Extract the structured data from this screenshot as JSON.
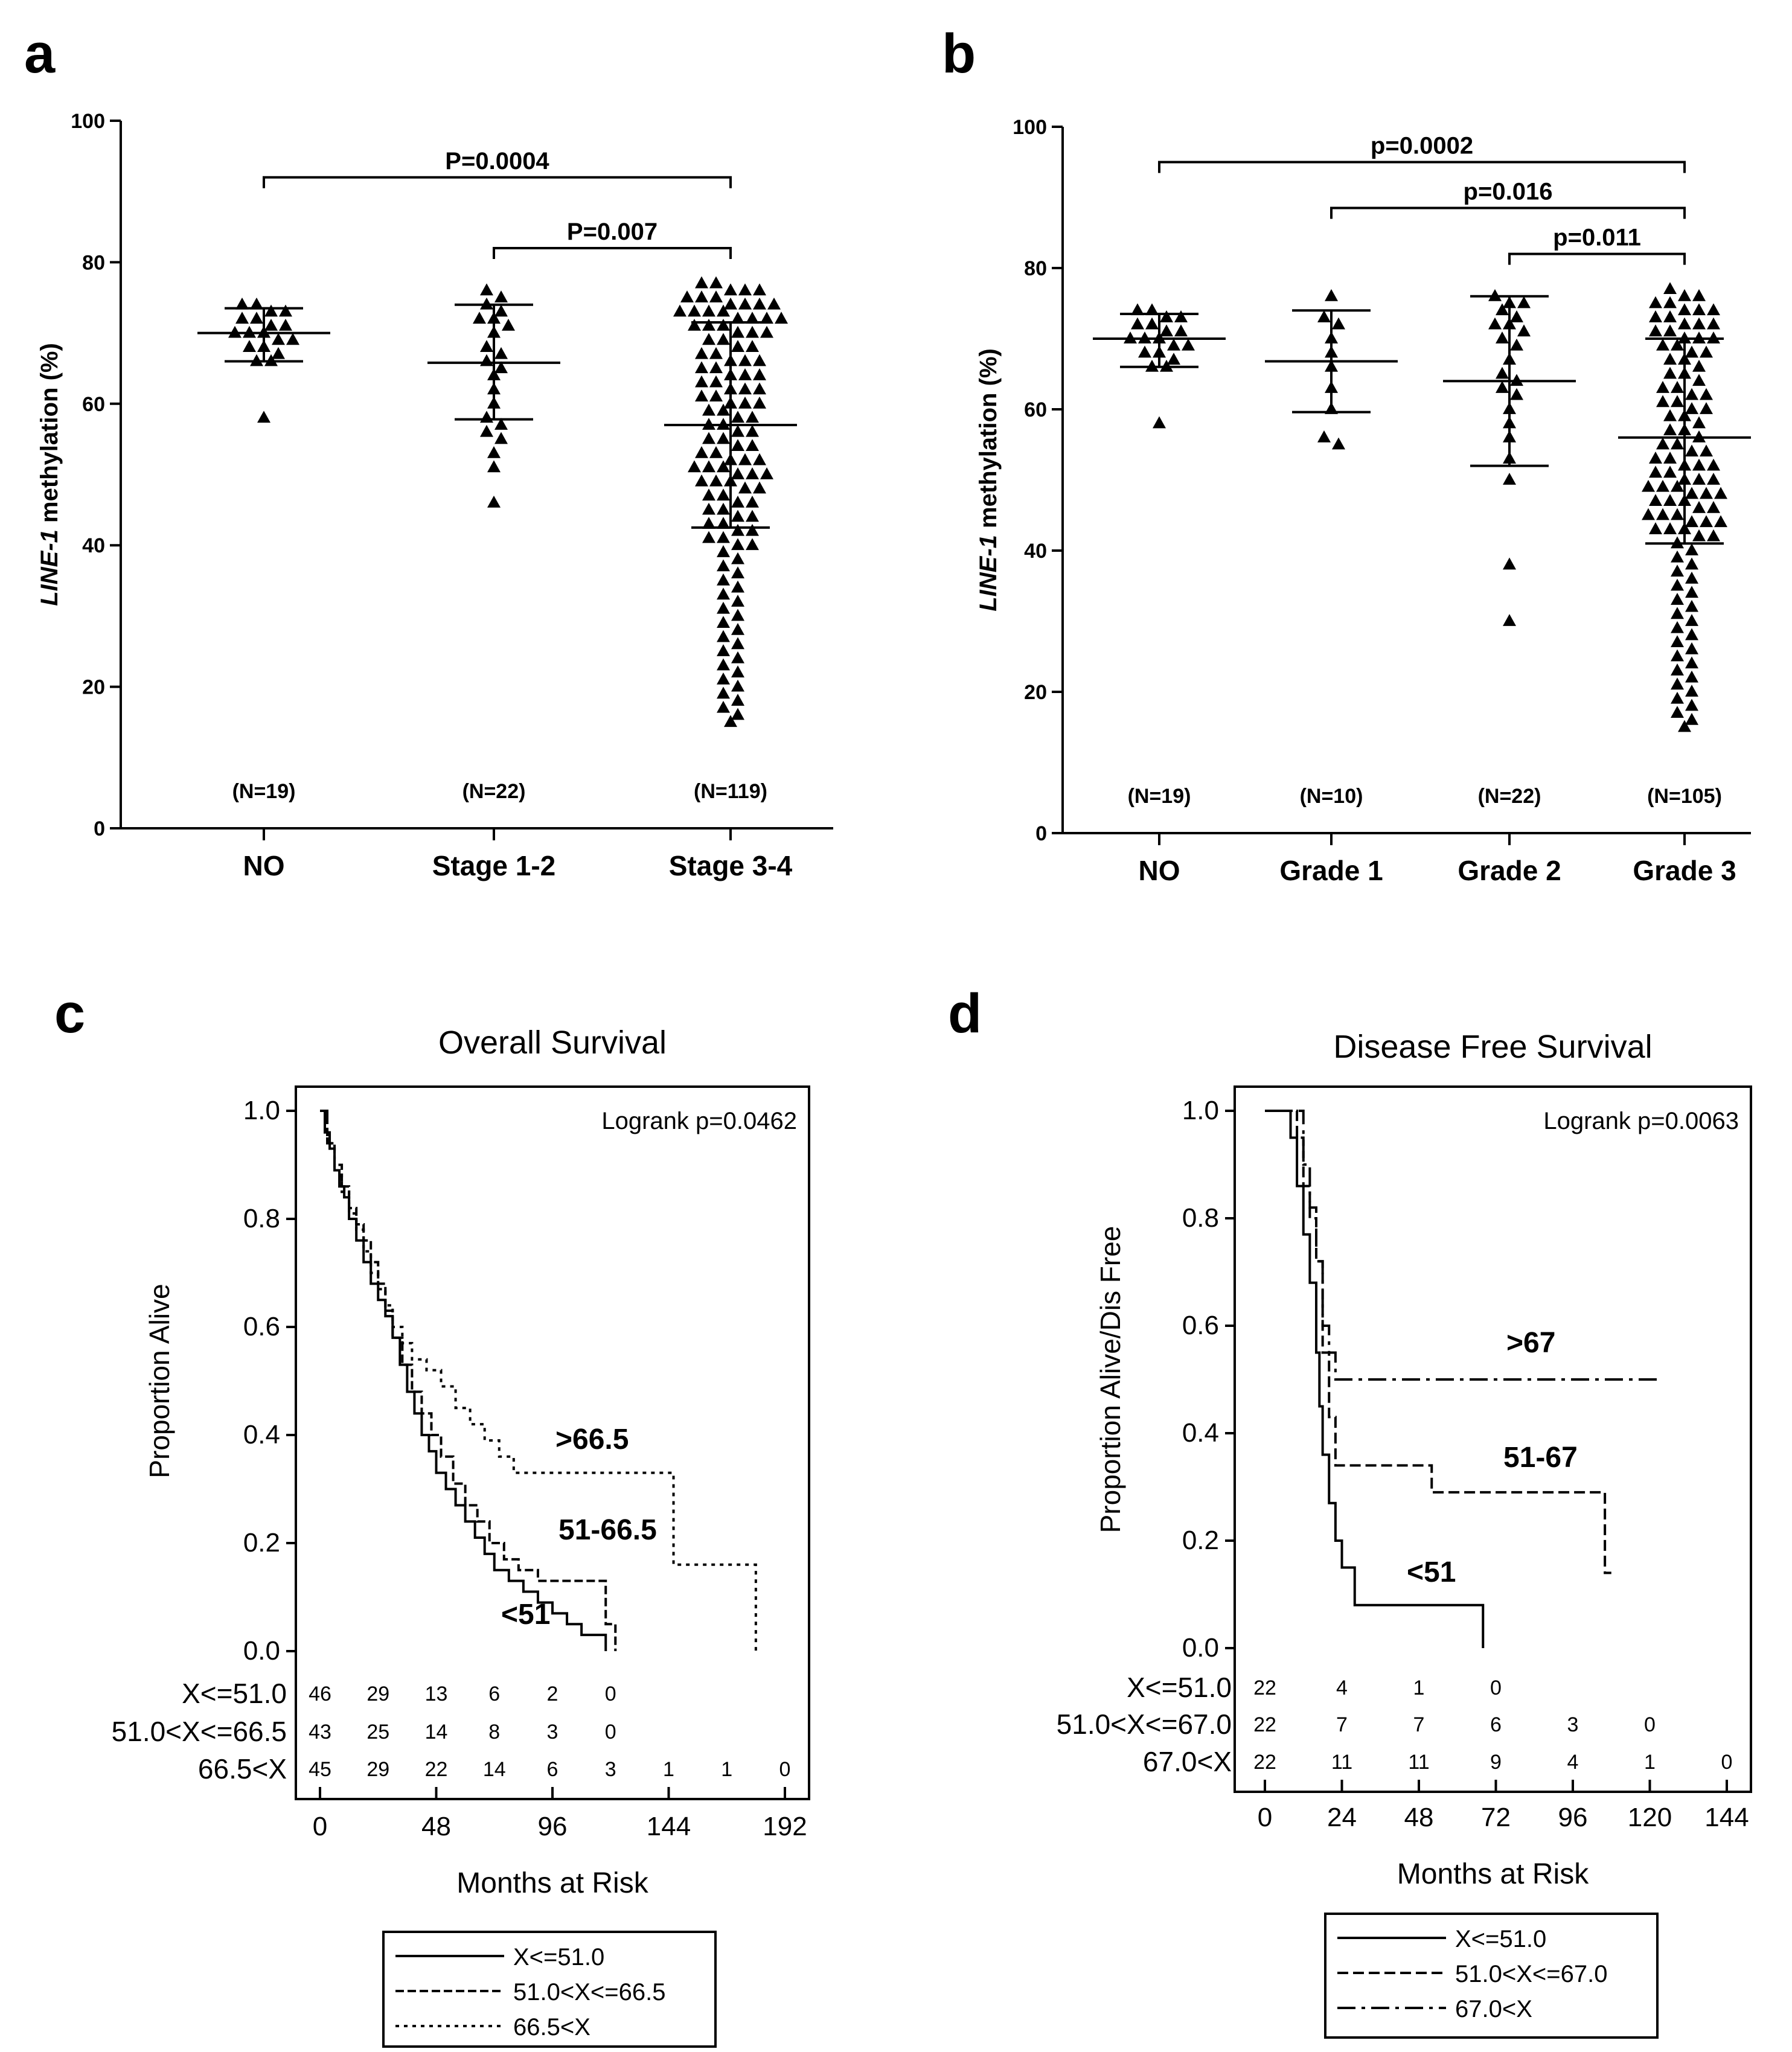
{
  "panels": {
    "a": {
      "letter": "a"
    },
    "b": {
      "letter": "b"
    },
    "c": {
      "letter": "c"
    },
    "d": {
      "letter": "d"
    }
  },
  "chart_data": [
    {
      "panel": "a",
      "type": "scatter",
      "ylabel_italic": "LINE-1",
      "ylabel_rest": " methylation (%)",
      "ylim": [
        0,
        100
      ],
      "yticks": [
        0,
        20,
        40,
        60,
        80,
        100
      ],
      "categories": [
        "NO",
        "Stage 1-2",
        "Stage 3-4"
      ],
      "n_labels": [
        "(N=19)",
        "(N=22)",
        "(N=119)"
      ],
      "summary": [
        {
          "mean": 70,
          "low": 66,
          "high": 73.5
        },
        {
          "mean": 65.8,
          "low": 57.8,
          "high": 74
        },
        {
          "mean": 57,
          "low": 42.5,
          "high": 71.5
        }
      ],
      "points": [
        [
          74,
          74,
          73,
          73,
          72,
          72,
          71,
          71,
          70,
          70,
          70,
          69,
          69,
          68,
          68,
          67,
          66,
          66,
          58
        ],
        [
          76,
          75,
          74,
          73,
          72,
          72,
          71,
          70,
          68,
          67,
          66,
          65,
          64,
          62,
          60,
          58,
          57,
          56,
          55,
          53,
          51,
          46
        ],
        [
          77,
          77,
          76,
          76,
          76,
          75,
          75,
          75,
          74,
          74,
          74,
          74,
          73,
          73,
          73,
          73,
          72,
          72,
          72,
          72,
          71,
          71,
          71,
          70,
          70,
          70,
          69,
          69,
          68,
          68,
          67,
          67,
          66,
          66,
          65,
          65,
          64,
          64,
          63,
          63,
          62,
          62,
          61,
          61,
          60,
          60,
          59,
          59,
          58,
          58,
          57,
          57,
          56,
          56,
          55,
          55,
          54,
          54,
          53,
          53,
          52,
          52,
          52,
          51,
          51,
          51,
          50,
          50,
          50,
          49,
          49,
          49,
          48,
          48,
          47,
          47,
          46,
          46,
          45,
          45,
          44,
          44,
          43,
          43,
          42,
          42,
          41,
          41,
          40,
          40,
          39,
          38,
          37,
          36,
          35,
          34,
          33,
          32,
          31,
          30,
          29,
          28,
          27,
          26,
          25,
          24,
          23,
          22,
          21,
          20,
          19,
          18,
          17,
          16,
          15,
          60,
          62,
          64,
          66
        ]
      ],
      "brackets": [
        {
          "from": 0,
          "to": 2,
          "y": 92,
          "label": "P=0.0004"
        },
        {
          "from": 1,
          "to": 2,
          "y": 82,
          "label": "P=0.007"
        }
      ]
    },
    {
      "panel": "b",
      "type": "scatter",
      "ylabel_italic": "LINE-1",
      "ylabel_rest": " methylation (%)",
      "ylim": [
        0,
        100
      ],
      "yticks": [
        0,
        20,
        40,
        60,
        80,
        100
      ],
      "categories": [
        "NO",
        "Grade 1",
        "Grade 2",
        "Grade 3"
      ],
      "n_labels": [
        "(N=19)",
        "(N=10)",
        "(N=22)",
        "(N=105)"
      ],
      "summary": [
        {
          "mean": 70,
          "low": 66,
          "high": 73.5
        },
        {
          "mean": 66.8,
          "low": 59.6,
          "high": 74
        },
        {
          "mean": 64,
          "low": 52,
          "high": 76
        },
        {
          "mean": 56,
          "low": 41,
          "high": 70
        }
      ],
      "points": [
        [
          74,
          74,
          73,
          73,
          72,
          72,
          71,
          71,
          70,
          70,
          70,
          69,
          69,
          68,
          68,
          67,
          66,
          66,
          58
        ],
        [
          76,
          73,
          72,
          70,
          68,
          66,
          63,
          60,
          56,
          55
        ],
        [
          76,
          75,
          75,
          74,
          73,
          72,
          71,
          70,
          69,
          67,
          65,
          64,
          63,
          62,
          60,
          58,
          56,
          53,
          50,
          38,
          30,
          72
        ],
        [
          77,
          76,
          76,
          75,
          75,
          74,
          74,
          73,
          73,
          72,
          72,
          71,
          71,
          70,
          70,
          69,
          69,
          68,
          67,
          66,
          65,
          64,
          63,
          62,
          61,
          60,
          59,
          58,
          57,
          56,
          55,
          54,
          53,
          52,
          52,
          51,
          51,
          50,
          50,
          49,
          49,
          48,
          48,
          47,
          47,
          46,
          46,
          45,
          45,
          44,
          44,
          43,
          43,
          42,
          42,
          41,
          40,
          39,
          38,
          37,
          36,
          35,
          34,
          33,
          32,
          31,
          30,
          29,
          28,
          27,
          26,
          25,
          24,
          23,
          22,
          21,
          20,
          19,
          18,
          17,
          16,
          15,
          55,
          57,
          59,
          61,
          63,
          65,
          67,
          68,
          70,
          72,
          74,
          52,
          53,
          54,
          50,
          49,
          48,
          47,
          45,
          44,
          43,
          60,
          62
        ]
      ],
      "brackets": [
        {
          "from": 0,
          "to": 3,
          "y": 95,
          "label": "p=0.0002"
        },
        {
          "from": 1,
          "to": 3,
          "y": 88.5,
          "label": "p=0.016"
        },
        {
          "from": 2,
          "to": 3,
          "y": 82,
          "label": "p=0.011"
        }
      ]
    },
    {
      "panel": "c",
      "type": "line",
      "title": "Overall Survival",
      "annotation": "Logrank p=0.0462",
      "xlabel": "Months at Risk",
      "ylabel": "Proportion Alive",
      "xlim": [
        0,
        192
      ],
      "ylim": [
        0,
        1
      ],
      "xticks": [
        0,
        48,
        96,
        144,
        192
      ],
      "yticks": [
        "0.0",
        "0.2",
        "0.4",
        "0.6",
        "0.8",
        "1.0"
      ],
      "series": [
        {
          "name": "X<=51.0",
          "dash": "",
          "curve_label": "<51",
          "x": [
            0,
            2,
            4,
            6,
            8,
            10,
            12,
            15,
            18,
            21,
            24,
            27,
            30,
            33,
            36,
            39,
            42,
            45,
            48,
            52,
            56,
            60,
            64,
            68,
            72,
            78,
            84,
            90,
            96,
            102,
            108,
            112,
            118
          ],
          "y": [
            1.0,
            0.96,
            0.93,
            0.89,
            0.86,
            0.84,
            0.8,
            0.76,
            0.72,
            0.68,
            0.65,
            0.62,
            0.58,
            0.53,
            0.48,
            0.44,
            0.4,
            0.37,
            0.33,
            0.3,
            0.27,
            0.24,
            0.21,
            0.18,
            0.15,
            0.13,
            0.11,
            0.09,
            0.07,
            0.05,
            0.03,
            0.03,
            0.0
          ]
        },
        {
          "name": "51.0<X<=66.5",
          "dash": "14 6",
          "curve_label": "51-66.5",
          "x": [
            0,
            3,
            6,
            9,
            12,
            15,
            18,
            21,
            24,
            27,
            30,
            34,
            38,
            42,
            46,
            50,
            55,
            60,
            65,
            70,
            76,
            82,
            90,
            100,
            110,
            118,
            122
          ],
          "y": [
            1.0,
            0.94,
            0.9,
            0.86,
            0.82,
            0.79,
            0.76,
            0.72,
            0.68,
            0.63,
            0.58,
            0.53,
            0.48,
            0.44,
            0.4,
            0.36,
            0.31,
            0.27,
            0.24,
            0.2,
            0.17,
            0.15,
            0.13,
            0.13,
            0.13,
            0.05,
            0.0
          ]
        },
        {
          "name": "66.5<X",
          "dash": "6 8",
          "curve_label": ">66.5",
          "x": [
            0,
            3,
            6,
            9,
            12,
            15,
            18,
            21,
            24,
            27,
            30,
            34,
            38,
            44,
            50,
            56,
            62,
            68,
            74,
            80,
            90,
            100,
            110,
            125,
            140,
            146,
            155,
            165,
            175,
            180,
            181
          ],
          "y": [
            1.0,
            0.94,
            0.89,
            0.85,
            0.81,
            0.78,
            0.74,
            0.7,
            0.67,
            0.64,
            0.6,
            0.57,
            0.54,
            0.52,
            0.49,
            0.45,
            0.42,
            0.39,
            0.36,
            0.33,
            0.33,
            0.33,
            0.33,
            0.33,
            0.33,
            0.16,
            0.16,
            0.16,
            0.16,
            0.0,
            0.0
          ]
        }
      ],
      "risk_rows": [
        {
          "label": "X<=51.0",
          "values": [
            "46",
            "29",
            "13",
            "6",
            "2",
            "0"
          ]
        },
        {
          "label": "51.0<X<=66.5",
          "values": [
            "43",
            "25",
            "14",
            "8",
            "3",
            "0"
          ]
        },
        {
          "label": "66.5<X",
          "values": [
            "45",
            "29",
            "22",
            "14",
            "6",
            "3",
            "1",
            "1",
            "0"
          ]
        }
      ],
      "risk_x": [
        0,
        24,
        48,
        72,
        96,
        120,
        144,
        168,
        192
      ],
      "legend": [
        "X<=51.0",
        "51.0<X<=66.5",
        "66.5<X"
      ]
    },
    {
      "panel": "d",
      "type": "line",
      "title": "Disease Free Survival",
      "annotation": "Logrank p=0.0063",
      "xlabel": "Months at Risk",
      "ylabel": "Proportion Alive/Dis Free",
      "xlim": [
        0,
        144
      ],
      "ylim": [
        0,
        1
      ],
      "xticks": [
        0,
        24,
        48,
        72,
        96,
        120,
        144
      ],
      "yticks": [
        "0.0",
        "0.2",
        "0.4",
        "0.6",
        "0.8",
        "1.0"
      ],
      "series": [
        {
          "name": "X<=51.0",
          "dash": "",
          "curve_label": "<51",
          "x": [
            0,
            8,
            10,
            12,
            14,
            16,
            17,
            18,
            20,
            22,
            24,
            28,
            36,
            48,
            60,
            68
          ],
          "y": [
            1.0,
            0.95,
            0.86,
            0.77,
            0.68,
            0.55,
            0.45,
            0.36,
            0.27,
            0.2,
            0.15,
            0.08,
            0.08,
            0.08,
            0.08,
            0.0
          ]
        },
        {
          "name": "51.0<X<=67.0",
          "dash": "18 8",
          "curve_label": "51-67",
          "x": [
            0,
            10,
            12,
            14,
            16,
            18,
            20,
            22,
            30,
            40,
            52,
            60,
            80,
            100,
            106,
            108
          ],
          "y": [
            1.0,
            0.95,
            0.86,
            0.8,
            0.72,
            0.55,
            0.43,
            0.34,
            0.34,
            0.34,
            0.29,
            0.29,
            0.29,
            0.29,
            0.14,
            0.14
          ]
        },
        {
          "name": "67.0<X",
          "dash": "30 10 6 10",
          "curve_label": ">67",
          "x": [
            0,
            12,
            14,
            16,
            18,
            20,
            22,
            24,
            40,
            60,
            80,
            100,
            120,
            124
          ],
          "y": [
            1.0,
            0.9,
            0.82,
            0.72,
            0.6,
            0.55,
            0.5,
            0.5,
            0.5,
            0.5,
            0.5,
            0.5,
            0.5,
            0.5
          ]
        }
      ],
      "risk_rows": [
        {
          "label": "X<=51.0",
          "values": [
            "22",
            "4",
            "1",
            "0"
          ]
        },
        {
          "label": "51.0<X<=67.0",
          "values": [
            "22",
            "7",
            "7",
            "6",
            "3",
            "0"
          ]
        },
        {
          "label": "67.0<X",
          "values": [
            "22",
            "11",
            "11",
            "9",
            "4",
            "1",
            "0"
          ]
        }
      ],
      "risk_x": [
        0,
        24,
        48,
        72,
        96,
        120,
        144
      ],
      "legend": [
        "X<=51.0",
        "51.0<X<=67.0",
        "67.0<X"
      ]
    }
  ]
}
